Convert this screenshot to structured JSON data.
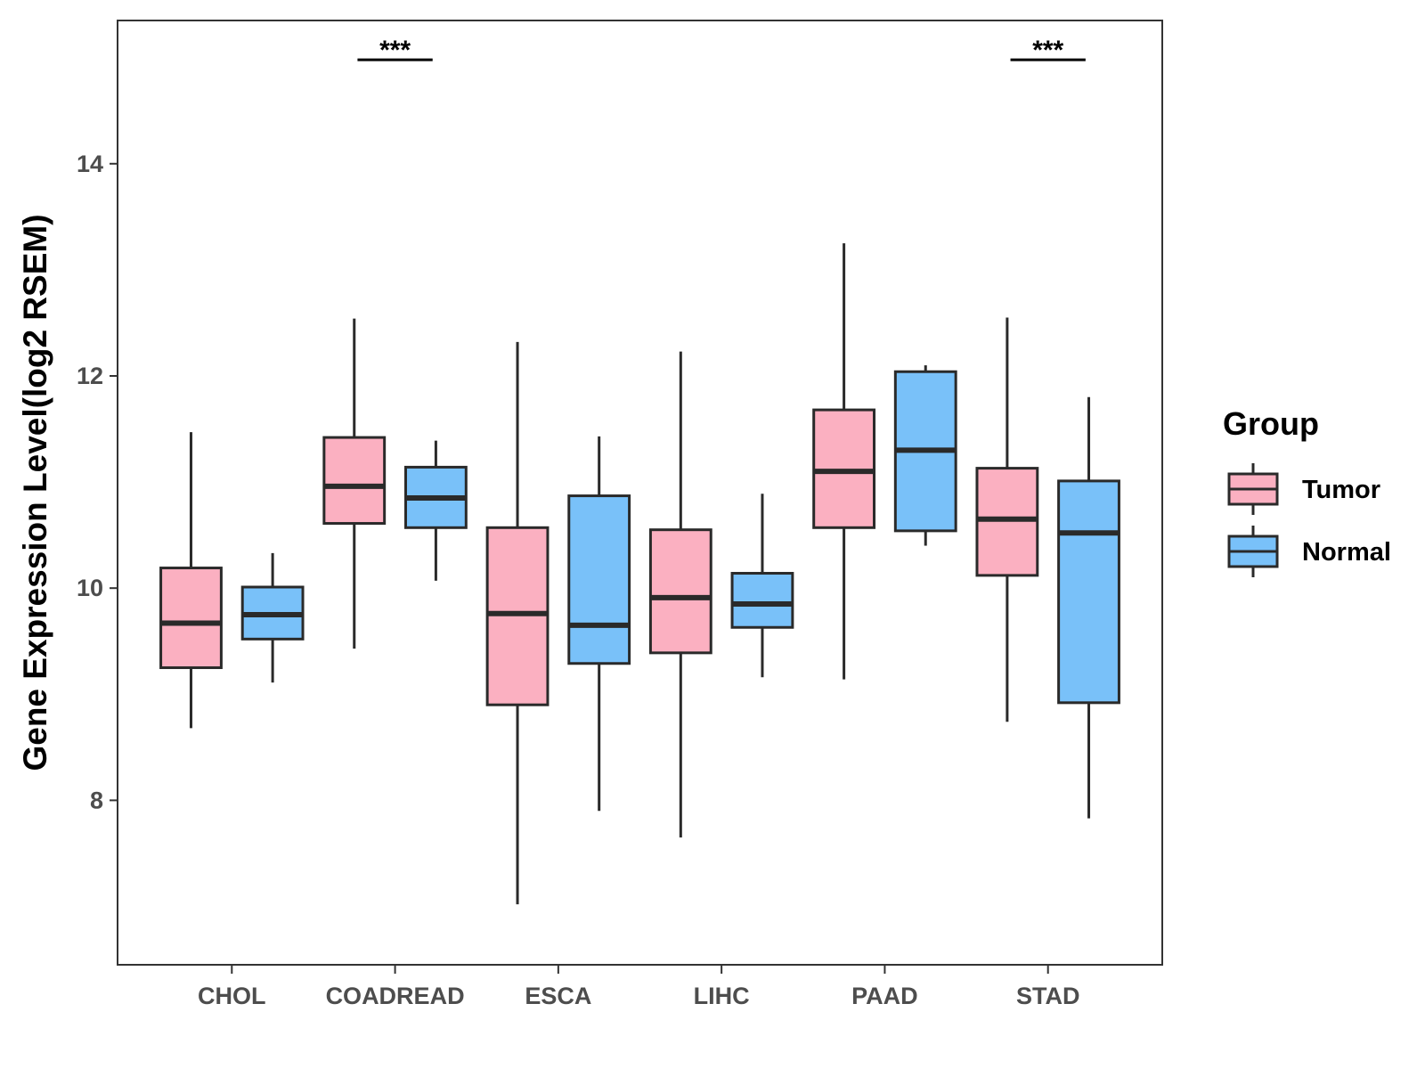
{
  "chart_data": {
    "type": "boxplot",
    "title": "",
    "xlabel": "",
    "ylabel": "Gene Expression Level(log2 RSEM)",
    "ylim": [
      6.45,
      15.35
    ],
    "yticks": [
      8,
      10,
      12,
      14
    ],
    "grid": false,
    "legend_position": "right",
    "categories": [
      "CHOL",
      "COADREAD",
      "ESCA",
      "LIHC",
      "PAAD",
      "STAD"
    ],
    "legend": {
      "title": "Group"
    },
    "series": [
      {
        "name": "Tumor",
        "color": "#fbb0c1",
        "boxes": [
          {
            "min": 8.68,
            "q1": 9.25,
            "median": 9.67,
            "q3": 10.19,
            "max": 11.47
          },
          {
            "min": 9.43,
            "q1": 10.61,
            "median": 10.96,
            "q3": 11.42,
            "max": 12.54
          },
          {
            "min": 7.02,
            "q1": 8.9,
            "median": 9.76,
            "q3": 10.57,
            "max": 12.32
          },
          {
            "min": 7.65,
            "q1": 9.39,
            "median": 9.91,
            "q3": 10.55,
            "max": 12.23
          },
          {
            "min": 9.14,
            "q1": 10.57,
            "median": 11.1,
            "q3": 11.68,
            "max": 13.25
          },
          {
            "min": 8.74,
            "q1": 10.12,
            "median": 10.65,
            "q3": 11.13,
            "max": 12.55
          }
        ]
      },
      {
        "name": "Normal",
        "color": "#79c1f9",
        "boxes": [
          {
            "min": 9.11,
            "q1": 9.52,
            "median": 9.75,
            "q3": 10.01,
            "max": 10.33
          },
          {
            "min": 10.07,
            "q1": 10.57,
            "median": 10.85,
            "q3": 11.14,
            "max": 11.39
          },
          {
            "min": 7.9,
            "q1": 9.29,
            "median": 9.65,
            "q3": 10.87,
            "max": 11.43
          },
          {
            "min": 9.16,
            "q1": 9.63,
            "median": 9.85,
            "q3": 10.14,
            "max": 10.89
          },
          {
            "min": 10.4,
            "q1": 10.54,
            "median": 11.3,
            "q3": 12.04,
            "max": 12.1
          },
          {
            "min": 7.83,
            "q1": 8.92,
            "median": 10.52,
            "q3": 11.01,
            "max": 11.8
          }
        ]
      }
    ],
    "annotations": [
      {
        "category": "COADREAD",
        "label": "***",
        "y": 14.98
      },
      {
        "category": "STAD",
        "label": "***",
        "y": 14.98
      }
    ]
  }
}
